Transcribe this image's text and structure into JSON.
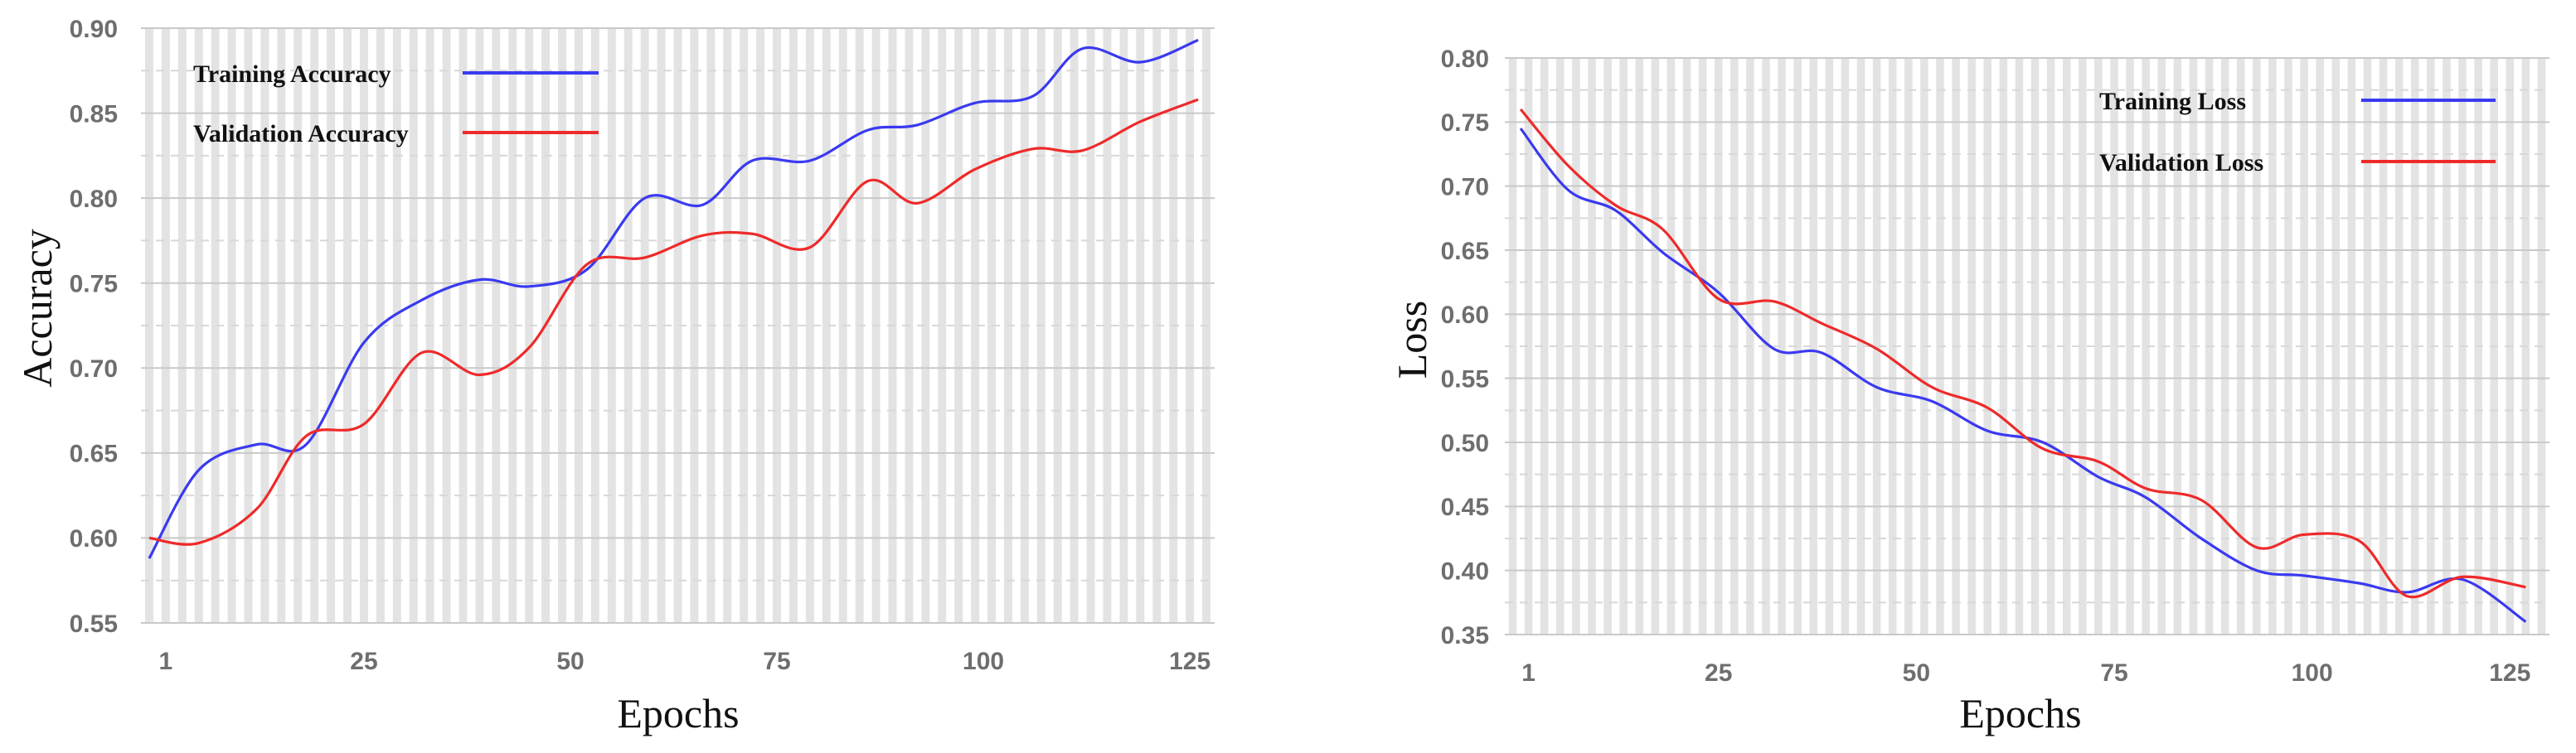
{
  "chart_data": [
    {
      "type": "line",
      "xlabel": "Epochs",
      "ylabel": "Accuracy",
      "xlim": [
        -2,
        128
      ],
      "ylim": [
        0.55,
        0.9
      ],
      "x_ticks": [
        1,
        25,
        50,
        75,
        100,
        125
      ],
      "y_ticks": [
        0.55,
        0.6,
        0.65,
        0.7,
        0.75,
        0.8,
        0.85,
        0.9
      ],
      "y_decimals": 2,
      "grid": true,
      "legend_position": "top-left",
      "series": [
        {
          "name": "Training Accuracy",
          "color": "#3a3af0",
          "x": [
            -1,
            5,
            12,
            18,
            25,
            32,
            39,
            45,
            52,
            59,
            66,
            72,
            79,
            86,
            92,
            99,
            106,
            112,
            119,
            126
          ],
          "y": [
            0.588,
            0.64,
            0.655,
            0.655,
            0.715,
            0.74,
            0.752,
            0.748,
            0.758,
            0.8,
            0.796,
            0.822,
            0.822,
            0.84,
            0.843,
            0.856,
            0.86,
            0.888,
            0.88,
            0.893
          ]
        },
        {
          "name": "Validation Accuracy",
          "color": "#ee2a2a",
          "x": [
            -1,
            5,
            12,
            18,
            25,
            32,
            39,
            45,
            52,
            59,
            66,
            72,
            79,
            86,
            92,
            99,
            106,
            112,
            119,
            126
          ],
          "y": [
            0.6,
            0.597,
            0.617,
            0.66,
            0.667,
            0.709,
            0.696,
            0.712,
            0.761,
            0.765,
            0.778,
            0.779,
            0.771,
            0.81,
            0.797,
            0.817,
            0.829,
            0.828,
            0.845,
            0.858
          ]
        }
      ]
    },
    {
      "type": "line",
      "xlabel": "Epochs",
      "ylabel": "Loss",
      "xlim": [
        -2,
        130
      ],
      "ylim": [
        0.35,
        0.8
      ],
      "x_ticks": [
        1,
        25,
        50,
        75,
        100,
        125
      ],
      "y_ticks": [
        0.35,
        0.4,
        0.45,
        0.5,
        0.55,
        0.6,
        0.65,
        0.7,
        0.75,
        0.8
      ],
      "y_decimals": 2,
      "grid": true,
      "legend_position": "top-right",
      "series": [
        {
          "name": "Training Loss",
          "color": "#3a3af0",
          "x": [
            0,
            6,
            12,
            18,
            25,
            32,
            38,
            45,
            52,
            59,
            66,
            73,
            79,
            86,
            93,
            99,
            106,
            112,
            119,
            127
          ],
          "y": [
            0.745,
            0.697,
            0.681,
            0.648,
            0.617,
            0.573,
            0.57,
            0.543,
            0.532,
            0.509,
            0.5,
            0.473,
            0.457,
            0.425,
            0.4,
            0.396,
            0.39,
            0.383,
            0.393,
            0.36
          ]
        },
        {
          "name": "Validation Loss",
          "color": "#ee2a2a",
          "x": [
            0,
            6,
            12,
            18,
            25,
            32,
            38,
            45,
            52,
            59,
            66,
            73,
            79,
            86,
            93,
            99,
            106,
            112,
            119,
            127
          ],
          "y": [
            0.76,
            0.716,
            0.685,
            0.666,
            0.612,
            0.61,
            0.593,
            0.573,
            0.543,
            0.527,
            0.495,
            0.485,
            0.464,
            0.455,
            0.418,
            0.428,
            0.423,
            0.38,
            0.395,
            0.387
          ]
        }
      ]
    }
  ]
}
